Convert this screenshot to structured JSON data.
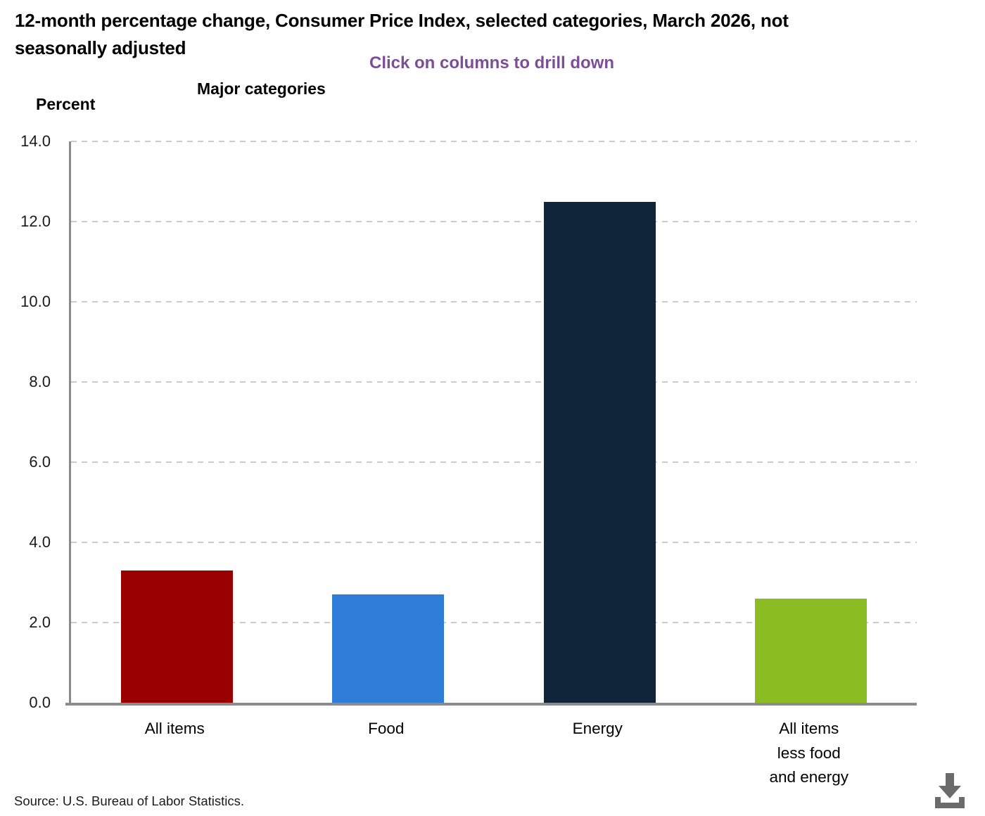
{
  "header": {
    "title": "12-month percentage change, Consumer Price Index, selected categories, March 2026, not\nseasonally adjusted",
    "subtitle": "Click on columns to drill down",
    "axis_group_label": "Major categories",
    "y_axis_label": "Percent"
  },
  "chart_data": {
    "type": "bar",
    "title": "12-month percentage change, Consumer Price Index, selected categories, March 2026, not seasonally adjusted",
    "subtitle": "Click on columns to drill down",
    "x_group_label": "Major categories",
    "ylabel": "Percent",
    "categories": [
      "All items",
      "Food",
      "Energy",
      "All items less food and energy"
    ],
    "category_display_lines": [
      "All items",
      "Food",
      "Energy",
      "All items\nless food\nand energy"
    ],
    "values": [
      3.3,
      2.7,
      12.5,
      2.6
    ],
    "bar_colors": [
      "#990000",
      "#2E7DD8",
      "#102539",
      "#8BBD22"
    ],
    "ylim": [
      0,
      14
    ],
    "ytick_step": 2,
    "ytick_labels": [
      "0.0",
      "2.0",
      "4.0",
      "6.0",
      "8.0",
      "10.0",
      "12.0",
      "14.0"
    ],
    "grid": "horizontal-dashed",
    "legend": "none"
  },
  "footer": {
    "source": "Source: U.S. Bureau of Labor Statistics.",
    "download_icon": "download-icon"
  },
  "colors": {
    "subtitle_purple": "#7B4E96",
    "axis_gray": "#8A8A8A",
    "gridline_gray": "#CBCBCB",
    "baseline_gray": "#8C8C8C",
    "icon_gray": "#6B6B6B"
  }
}
